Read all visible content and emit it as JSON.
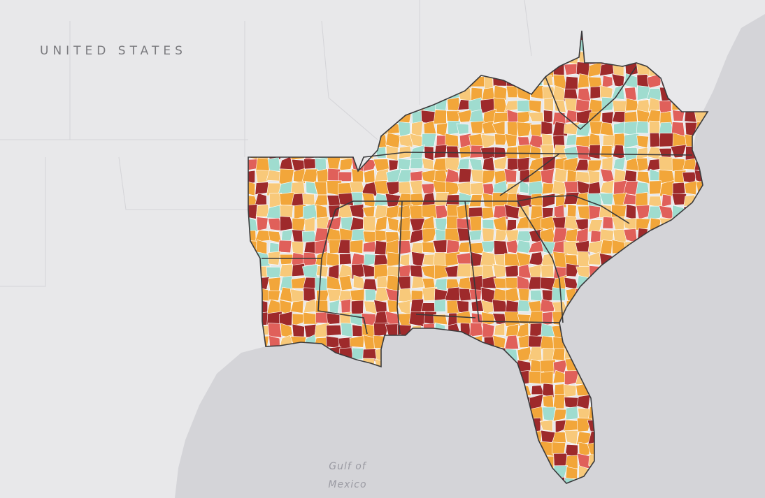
{
  "labels": {
    "country": "UNITED STATES",
    "gulf_line1": "Gulf of",
    "gulf_line2": "Mexico"
  }
}
